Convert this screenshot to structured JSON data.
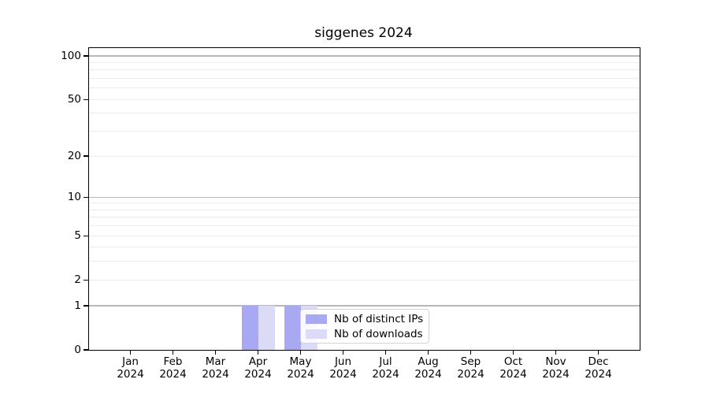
{
  "chart_data": {
    "type": "bar",
    "title": "siggenes 2024",
    "xlabel": "",
    "ylabel": "",
    "categories": [
      "Jan",
      "Feb",
      "Mar",
      "Apr",
      "May",
      "Jun",
      "Jul",
      "Aug",
      "Sep",
      "Oct",
      "Nov",
      "Dec"
    ],
    "x_year_label": "2024",
    "series": [
      {
        "name": "Nb of distinct IPs",
        "color": "#a8a8f3",
        "values": [
          0,
          0,
          0,
          1,
          1,
          0,
          0,
          0,
          0,
          0,
          0,
          0
        ]
      },
      {
        "name": "Nb of downloads",
        "color": "#dbdbf8",
        "values": [
          0,
          0,
          0,
          1,
          1,
          0,
          0,
          0,
          0,
          0,
          0,
          0
        ]
      }
    ],
    "yscale": "log1p",
    "ylim": [
      0,
      113.5
    ],
    "yticks": [
      0,
      1,
      2,
      5,
      10,
      20,
      50,
      100
    ],
    "gridlines_major": [
      1,
      10,
      100
    ],
    "gridlines_minor": [
      2,
      3,
      4,
      5,
      6,
      7,
      8,
      9,
      20,
      30,
      40,
      50,
      60,
      70,
      80,
      90
    ],
    "grid_color_major": "#b8b8b8",
    "grid_color_minor": "#ececec",
    "legend_position": "inside-lower-center",
    "legend": [
      "Nb of distinct IPs",
      "Nb of downloads"
    ]
  }
}
